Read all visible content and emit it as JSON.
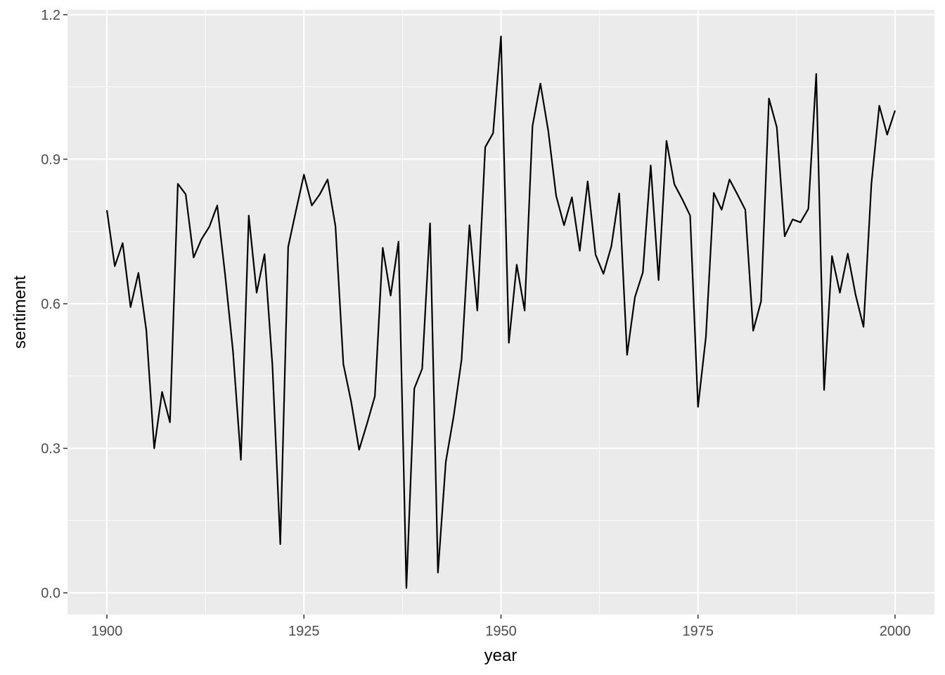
{
  "chart_data": {
    "type": "line",
    "x_label": "year",
    "y_label": "sentiment",
    "x": [
      1900,
      1901,
      1902,
      1903,
      1904,
      1905,
      1906,
      1907,
      1908,
      1909,
      1910,
      1911,
      1912,
      1913,
      1914,
      1915,
      1916,
      1917,
      1918,
      1919,
      1920,
      1921,
      1922,
      1923,
      1924,
      1925,
      1926,
      1927,
      1928,
      1929,
      1930,
      1931,
      1932,
      1933,
      1934,
      1935,
      1936,
      1937,
      1938,
      1939,
      1940,
      1941,
      1942,
      1943,
      1944,
      1945,
      1946,
      1947,
      1948,
      1949,
      1950,
      1951,
      1952,
      1953,
      1954,
      1955,
      1956,
      1957,
      1958,
      1959,
      1960,
      1961,
      1962,
      1963,
      1964,
      1965,
      1966,
      1967,
      1968,
      1969,
      1970,
      1971,
      1972,
      1973,
      1974,
      1975,
      1976,
      1977,
      1978,
      1979,
      1980,
      1981,
      1982,
      1983,
      1984,
      1985,
      1986,
      1987,
      1988,
      1989,
      1990,
      1991,
      1992,
      1993,
      1994,
      1995,
      1996,
      1997,
      1998,
      1999,
      2000
    ],
    "series": [
      {
        "name": "sentiment",
        "color": "#000000",
        "values": [
          0.794,
          0.678,
          0.726,
          0.593,
          0.664,
          0.545,
          0.3,
          0.417,
          0.354,
          0.849,
          0.827,
          0.696,
          0.734,
          0.76,
          0.804,
          0.66,
          0.501,
          0.276,
          0.783,
          0.623,
          0.703,
          0.472,
          0.101,
          0.718,
          0.794,
          0.868,
          0.804,
          0.827,
          0.858,
          0.761,
          0.475,
          0.396,
          0.297,
          0.351,
          0.408,
          0.716,
          0.617,
          0.729,
          0.01,
          0.424,
          0.465,
          0.767,
          0.042,
          0.272,
          0.367,
          0.484,
          0.763,
          0.586,
          0.925,
          0.954,
          1.155,
          0.519,
          0.681,
          0.586,
          0.969,
          1.057,
          0.959,
          0.824,
          0.763,
          0.821,
          0.71,
          0.854,
          0.702,
          0.662,
          0.719,
          0.829,
          0.494,
          0.614,
          0.665,
          0.887,
          0.649,
          0.938,
          0.848,
          0.817,
          0.783,
          0.386,
          0.531,
          0.83,
          0.795,
          0.858,
          0.827,
          0.795,
          0.544,
          0.605,
          1.026,
          0.966,
          0.74,
          0.775,
          0.769,
          0.797,
          1.077,
          0.421,
          0.699,
          0.623,
          0.704,
          0.618,
          0.552,
          0.849,
          1.011,
          0.951,
          1.001
        ]
      }
    ],
    "xlim": [
      1895,
      2005
    ],
    "ylim": [
      -0.045,
      1.21
    ],
    "xticks": [
      1900,
      1925,
      1950,
      1975,
      2000
    ],
    "yticks": [
      {
        "value": 0,
        "label": "0.0"
      },
      0.3,
      0.6,
      0.9,
      1.2
    ],
    "x_minor_ticks": [
      1912.5,
      1937.5,
      1962.5,
      1987.5
    ],
    "y_minor_ticks": [
      0.15,
      0.45,
      0.75,
      1.05
    ],
    "grid": true
  }
}
